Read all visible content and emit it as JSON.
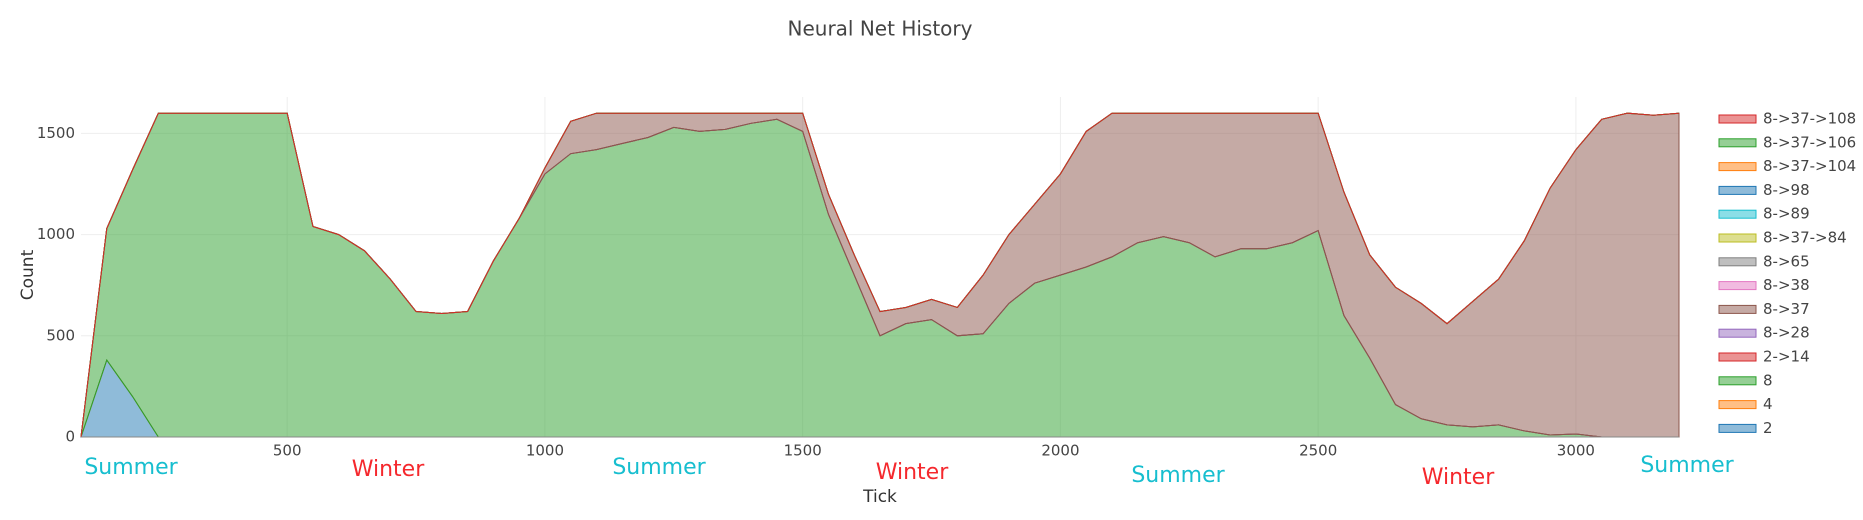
{
  "chart_data": {
    "type": "stacked_area",
    "title": "Neural Net History",
    "x_label": "Tick",
    "y_label": "Count",
    "xlim": [
      100,
      3200
    ],
    "ylim": [
      0,
      1680
    ],
    "xticks": [
      500,
      1000,
      1500,
      2000,
      2500,
      3000
    ],
    "yticks": [
      0,
      500,
      1000,
      1500
    ],
    "grid": true,
    "legend": "right",
    "fill_opacity": 0.5,
    "x": [
      100,
      150,
      200,
      250,
      300,
      350,
      400,
      450,
      500,
      550,
      600,
      650,
      700,
      750,
      800,
      850,
      900,
      950,
      1000,
      1050,
      1100,
      1150,
      1200,
      1250,
      1300,
      1350,
      1400,
      1450,
      1500,
      1550,
      1600,
      1650,
      1700,
      1750,
      1800,
      1850,
      1900,
      1950,
      2000,
      2050,
      2100,
      2150,
      2200,
      2250,
      2300,
      2350,
      2400,
      2450,
      2500,
      2550,
      2600,
      2650,
      2700,
      2750,
      2800,
      2850,
      2900,
      2950,
      3000,
      3050,
      3100,
      3150,
      3200
    ],
    "series": [
      {
        "name": "2",
        "color": "#1f77b4",
        "values": [
          0,
          380,
          200,
          0,
          0,
          0,
          0,
          0,
          0,
          0,
          0,
          0,
          0,
          0,
          0,
          0,
          0,
          0,
          0,
          0,
          0,
          0,
          0,
          0,
          0,
          0,
          0,
          0,
          0,
          0,
          0,
          0,
          0,
          0,
          0,
          0,
          0,
          0,
          0,
          0,
          0,
          0,
          0,
          0,
          0,
          0,
          0,
          0,
          0,
          0,
          0,
          0,
          0,
          0,
          0,
          0,
          0,
          0,
          0,
          0,
          0,
          0,
          0
        ]
      },
      {
        "name": "4",
        "color": "#ff7f0e",
        "values": [
          0,
          0,
          0,
          0,
          0,
          0,
          0,
          0,
          0,
          0,
          0,
          0,
          0,
          0,
          0,
          0,
          0,
          0,
          0,
          0,
          0,
          0,
          0,
          0,
          0,
          0,
          0,
          0,
          0,
          0,
          0,
          0,
          0,
          0,
          0,
          0,
          0,
          0,
          0,
          0,
          0,
          0,
          0,
          0,
          0,
          0,
          0,
          0,
          0,
          0,
          0,
          0,
          0,
          0,
          0,
          0,
          0,
          0,
          0,
          0,
          0,
          0,
          0
        ]
      },
      {
        "name": "8",
        "color": "#2ca02c",
        "values": [
          0,
          650,
          1120,
          1600,
          1600,
          1600,
          1600,
          1600,
          1600,
          1040,
          1000,
          920,
          780,
          620,
          610,
          620,
          870,
          1080,
          1300,
          1400,
          1420,
          1450,
          1480,
          1530,
          1510,
          1520,
          1550,
          1570,
          1510,
          1100,
          800,
          500,
          560,
          580,
          500,
          510,
          660,
          760,
          800,
          840,
          890,
          960,
          990,
          960,
          890,
          930,
          930,
          960,
          1020,
          600,
          390,
          160,
          90,
          60,
          50,
          60,
          30,
          10,
          15,
          0,
          0,
          0,
          0
        ]
      },
      {
        "name": "2->14",
        "color": "#d62728",
        "values": [
          0,
          0,
          0,
          0,
          0,
          0,
          0,
          0,
          0,
          0,
          0,
          0,
          0,
          0,
          0,
          0,
          0,
          0,
          0,
          0,
          0,
          0,
          0,
          0,
          0,
          0,
          0,
          0,
          0,
          0,
          0,
          0,
          0,
          0,
          0,
          0,
          0,
          0,
          0,
          0,
          0,
          0,
          0,
          0,
          0,
          0,
          0,
          0,
          0,
          0,
          0,
          0,
          0,
          0,
          0,
          0,
          0,
          0,
          0,
          0,
          0,
          0,
          0
        ]
      },
      {
        "name": "8->28",
        "color": "#9467bd",
        "values": [
          0,
          0,
          0,
          0,
          0,
          0,
          0,
          0,
          0,
          0,
          0,
          0,
          0,
          0,
          0,
          0,
          0,
          0,
          0,
          0,
          0,
          0,
          0,
          0,
          0,
          0,
          0,
          0,
          0,
          0,
          0,
          0,
          0,
          0,
          0,
          0,
          0,
          0,
          0,
          0,
          0,
          0,
          0,
          0,
          0,
          0,
          0,
          0,
          0,
          0,
          0,
          0,
          0,
          0,
          0,
          0,
          0,
          0,
          0,
          0,
          0,
          0,
          0
        ]
      },
      {
        "name": "8->37",
        "color": "#8c564b",
        "values": [
          0,
          0,
          0,
          0,
          0,
          0,
          0,
          0,
          0,
          0,
          0,
          0,
          0,
          0,
          0,
          0,
          0,
          0,
          30,
          160,
          180,
          150,
          120,
          70,
          90,
          80,
          50,
          30,
          90,
          100,
          100,
          120,
          80,
          100,
          140,
          290,
          340,
          390,
          500,
          670,
          710,
          640,
          610,
          640,
          710,
          670,
          670,
          640,
          580,
          610,
          510,
          580,
          570,
          500,
          620,
          720,
          940,
          1220,
          1405,
          1570,
          1600,
          1590,
          1600
        ]
      },
      {
        "name": "8->38",
        "color": "#e377c2",
        "values": [
          0,
          0,
          0,
          0,
          0,
          0,
          0,
          0,
          0,
          0,
          0,
          0,
          0,
          0,
          0,
          0,
          0,
          0,
          0,
          0,
          0,
          0,
          0,
          0,
          0,
          0,
          0,
          0,
          0,
          0,
          0,
          0,
          0,
          0,
          0,
          0,
          0,
          0,
          0,
          0,
          0,
          0,
          0,
          0,
          0,
          0,
          0,
          0,
          0,
          0,
          0,
          0,
          0,
          0,
          0,
          0,
          0,
          0,
          0,
          0,
          0,
          0,
          0
        ]
      },
      {
        "name": "8->65",
        "color": "#7f7f7f",
        "values": [
          0,
          0,
          0,
          0,
          0,
          0,
          0,
          0,
          0,
          0,
          0,
          0,
          0,
          0,
          0,
          0,
          0,
          0,
          0,
          0,
          0,
          0,
          0,
          0,
          0,
          0,
          0,
          0,
          0,
          0,
          0,
          0,
          0,
          0,
          0,
          0,
          0,
          0,
          0,
          0,
          0,
          0,
          0,
          0,
          0,
          0,
          0,
          0,
          0,
          0,
          0,
          0,
          0,
          0,
          0,
          0,
          0,
          0,
          0,
          0,
          0,
          0,
          0
        ]
      },
      {
        "name": "8->37->84",
        "color": "#bcbd22",
        "values": [
          0,
          0,
          0,
          0,
          0,
          0,
          0,
          0,
          0,
          0,
          0,
          0,
          0,
          0,
          0,
          0,
          0,
          0,
          0,
          0,
          0,
          0,
          0,
          0,
          0,
          0,
          0,
          0,
          0,
          0,
          0,
          0,
          0,
          0,
          0,
          0,
          0,
          0,
          0,
          0,
          0,
          0,
          0,
          0,
          0,
          0,
          0,
          0,
          0,
          0,
          0,
          0,
          0,
          0,
          0,
          0,
          0,
          0,
          0,
          0,
          0,
          0,
          0
        ]
      },
      {
        "name": "8->89",
        "color": "#17becf",
        "values": [
          0,
          0,
          0,
          0,
          0,
          0,
          0,
          0,
          0,
          0,
          0,
          0,
          0,
          0,
          0,
          0,
          0,
          0,
          0,
          0,
          0,
          0,
          0,
          0,
          0,
          0,
          0,
          0,
          0,
          0,
          0,
          0,
          0,
          0,
          0,
          0,
          0,
          0,
          0,
          0,
          0,
          0,
          0,
          0,
          0,
          0,
          0,
          0,
          0,
          0,
          0,
          0,
          0,
          0,
          0,
          0,
          0,
          0,
          0,
          0,
          0,
          0,
          0
        ]
      },
      {
        "name": "8->98",
        "color": "#1f77b4",
        "values": [
          0,
          0,
          0,
          0,
          0,
          0,
          0,
          0,
          0,
          0,
          0,
          0,
          0,
          0,
          0,
          0,
          0,
          0,
          0,
          0,
          0,
          0,
          0,
          0,
          0,
          0,
          0,
          0,
          0,
          0,
          0,
          0,
          0,
          0,
          0,
          0,
          0,
          0,
          0,
          0,
          0,
          0,
          0,
          0,
          0,
          0,
          0,
          0,
          0,
          0,
          0,
          0,
          0,
          0,
          0,
          0,
          0,
          0,
          0,
          0,
          0,
          0,
          0
        ]
      },
      {
        "name": "8->37->104",
        "color": "#ff7f0e",
        "values": [
          0,
          0,
          0,
          0,
          0,
          0,
          0,
          0,
          0,
          0,
          0,
          0,
          0,
          0,
          0,
          0,
          0,
          0,
          0,
          0,
          0,
          0,
          0,
          0,
          0,
          0,
          0,
          0,
          0,
          0,
          0,
          0,
          0,
          0,
          0,
          0,
          0,
          0,
          0,
          0,
          0,
          0,
          0,
          0,
          0,
          0,
          0,
          0,
          0,
          0,
          0,
          0,
          0,
          0,
          0,
          0,
          0,
          0,
          0,
          0,
          0,
          0,
          0
        ]
      },
      {
        "name": "8->37->106",
        "color": "#2ca02c",
        "values": [
          0,
          0,
          0,
          0,
          0,
          0,
          0,
          0,
          0,
          0,
          0,
          0,
          0,
          0,
          0,
          0,
          0,
          0,
          0,
          0,
          0,
          0,
          0,
          0,
          0,
          0,
          0,
          0,
          0,
          0,
          0,
          0,
          0,
          0,
          0,
          0,
          0,
          0,
          0,
          0,
          0,
          0,
          0,
          0,
          0,
          0,
          0,
          0,
          0,
          0,
          0,
          0,
          0,
          0,
          0,
          0,
          0,
          0,
          0,
          0,
          0,
          0,
          0
        ]
      },
      {
        "name": "8->37->108",
        "color": "#d62728",
        "values": [
          0,
          0,
          0,
          0,
          0,
          0,
          0,
          0,
          0,
          0,
          0,
          0,
          0,
          0,
          0,
          0,
          0,
          0,
          0,
          0,
          0,
          0,
          0,
          0,
          0,
          0,
          0,
          0,
          0,
          0,
          0,
          0,
          0,
          0,
          0,
          0,
          0,
          0,
          0,
          0,
          0,
          0,
          0,
          0,
          0,
          0,
          0,
          0,
          0,
          0,
          0,
          0,
          0,
          0,
          0,
          0,
          0,
          0,
          0,
          0,
          0,
          0,
          0
        ]
      }
    ],
    "annotations": [
      {
        "text": "Summer",
        "color": "#17becf"
      },
      {
        "text": "Winter",
        "color": "#f5282d"
      },
      {
        "text": "Summer",
        "color": "#17becf"
      },
      {
        "text": "Winter",
        "color": "#f5282d"
      },
      {
        "text": "Summer",
        "color": "#17becf"
      },
      {
        "text": "Winter",
        "color": "#f5282d"
      },
      {
        "text": "Summer",
        "color": "#17becf"
      }
    ]
  }
}
